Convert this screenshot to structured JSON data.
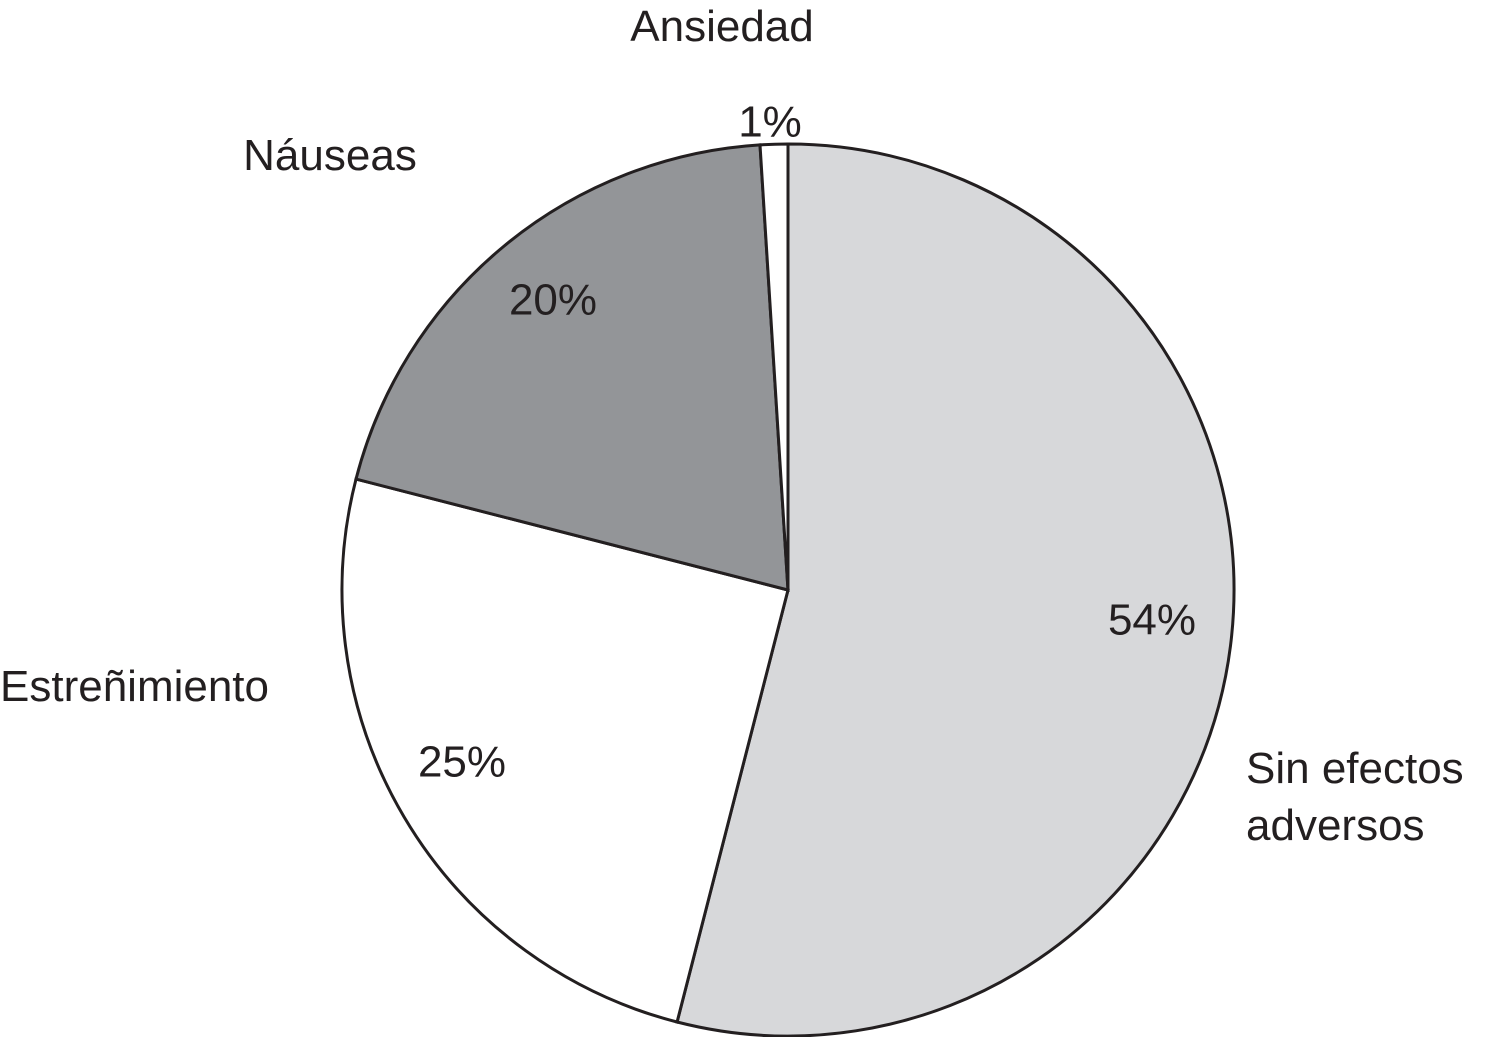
{
  "chart_data": {
    "type": "pie",
    "title": "",
    "slices": [
      {
        "name": "Sin efectos adversos",
        "lines": [
          "Sin efectos",
          "adversos"
        ],
        "value": 54,
        "value_label": "54%",
        "color": "#d7d8da"
      },
      {
        "name": "Estreñimiento",
        "lines": [
          "Estreñimiento"
        ],
        "value": 25,
        "value_label": "25%",
        "color": "#ffffff"
      },
      {
        "name": "Náuseas",
        "lines": [
          "Náuseas"
        ],
        "value": 20,
        "value_label": "20%",
        "color": "#939598"
      },
      {
        "name": "Ansiedad",
        "lines": [
          "Ansiedad"
        ],
        "value": 1,
        "value_label": "1%",
        "color": "#ffffff"
      }
    ],
    "start_angle_deg": 0,
    "direction": "clockwise",
    "stroke_color": "#231f20"
  }
}
